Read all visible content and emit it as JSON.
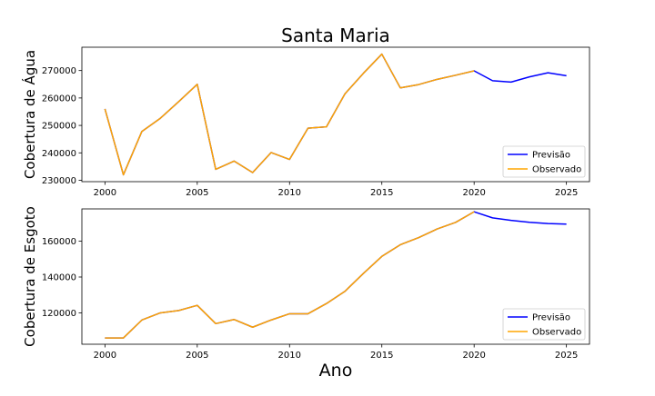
{
  "figure": {
    "title": "Santa Maria",
    "xlabel": "Ano"
  },
  "chart_data": [
    {
      "type": "line",
      "title": "Santa Maria",
      "xlabel": "",
      "ylabel": "Cobertura de Água",
      "xlim": [
        1998.75,
        2026.25
      ],
      "ylim": [
        229500,
        278500
      ],
      "xticks": [
        2000,
        2005,
        2010,
        2015,
        2020,
        2025
      ],
      "xtick_labels": [
        "2000",
        "2005",
        "2010",
        "2015",
        "2020",
        "2025"
      ],
      "yticks": [
        230000,
        240000,
        250000,
        260000,
        270000
      ],
      "ytick_labels": [
        "230000",
        "240000",
        "250000",
        "260000",
        "270000"
      ],
      "grid": false,
      "legend": {
        "position": "lower-right",
        "entries": [
          "Previsão",
          "Observado"
        ]
      },
      "series": [
        {
          "name": "Previsão",
          "color": "#0000ff",
          "x": [
            2000,
            2001,
            2002,
            2003,
            2004,
            2005,
            2006,
            2007,
            2008,
            2009,
            2010,
            2011,
            2012,
            2013,
            2014,
            2015,
            2016,
            2017,
            2018,
            2019,
            2020,
            2021,
            2022,
            2023,
            2024,
            2025
          ],
          "y": [
            256000,
            232000,
            247800,
            252600,
            258700,
            265000,
            234000,
            237000,
            232800,
            240100,
            237600,
            249000,
            249500,
            261500,
            269000,
            276000,
            263700,
            264900,
            266800,
            268300,
            269900,
            266300,
            265800,
            267700,
            269200,
            268100
          ]
        },
        {
          "name": "Observado",
          "color": "#ffa500",
          "x": [
            2000,
            2001,
            2002,
            2003,
            2004,
            2005,
            2006,
            2007,
            2008,
            2009,
            2010,
            2011,
            2012,
            2013,
            2014,
            2015,
            2016,
            2017,
            2018,
            2019,
            2020
          ],
          "y": [
            256000,
            232000,
            247800,
            252600,
            258700,
            265000,
            234000,
            237000,
            232800,
            240100,
            237600,
            249000,
            249500,
            261500,
            269000,
            276000,
            263700,
            264900,
            266800,
            268300,
            269900
          ]
        }
      ]
    },
    {
      "type": "line",
      "title": "",
      "xlabel": "Ano",
      "ylabel": "Cobertura de Esgoto",
      "xlim": [
        1998.75,
        2026.25
      ],
      "ylim": [
        102500,
        178000
      ],
      "xticks": [
        2000,
        2005,
        2010,
        2015,
        2020,
        2025
      ],
      "xtick_labels": [
        "2000",
        "2005",
        "2010",
        "2015",
        "2020",
        "2025"
      ],
      "yticks": [
        120000,
        140000,
        160000
      ],
      "ytick_labels": [
        "120000",
        "140000",
        "160000"
      ],
      "grid": false,
      "legend": {
        "position": "lower-right",
        "entries": [
          "Previsão",
          "Observado"
        ]
      },
      "series": [
        {
          "name": "Previsão",
          "color": "#0000ff",
          "x": [
            2000,
            2001,
            2002,
            2003,
            2004,
            2005,
            2006,
            2007,
            2008,
            2009,
            2010,
            2011,
            2012,
            2013,
            2014,
            2015,
            2016,
            2017,
            2018,
            2019,
            2020,
            2021,
            2022,
            2023,
            2024,
            2025
          ],
          "y": [
            106000,
            106000,
            116000,
            120000,
            121300,
            124200,
            114000,
            116300,
            112000,
            116000,
            119500,
            119500,
            125200,
            132000,
            142000,
            151500,
            158000,
            162000,
            166800,
            170500,
            176400,
            173000,
            171600,
            170500,
            169800,
            169500
          ]
        },
        {
          "name": "Observado",
          "color": "#ffa500",
          "x": [
            2000,
            2001,
            2002,
            2003,
            2004,
            2005,
            2006,
            2007,
            2008,
            2009,
            2010,
            2011,
            2012,
            2013,
            2014,
            2015,
            2016,
            2017,
            2018,
            2019,
            2020
          ],
          "y": [
            106000,
            106000,
            116000,
            120000,
            121300,
            124200,
            114000,
            116300,
            112000,
            116000,
            119500,
            119500,
            125200,
            132000,
            142000,
            151500,
            158000,
            162000,
            166800,
            170500,
            176400
          ]
        }
      ]
    }
  ]
}
